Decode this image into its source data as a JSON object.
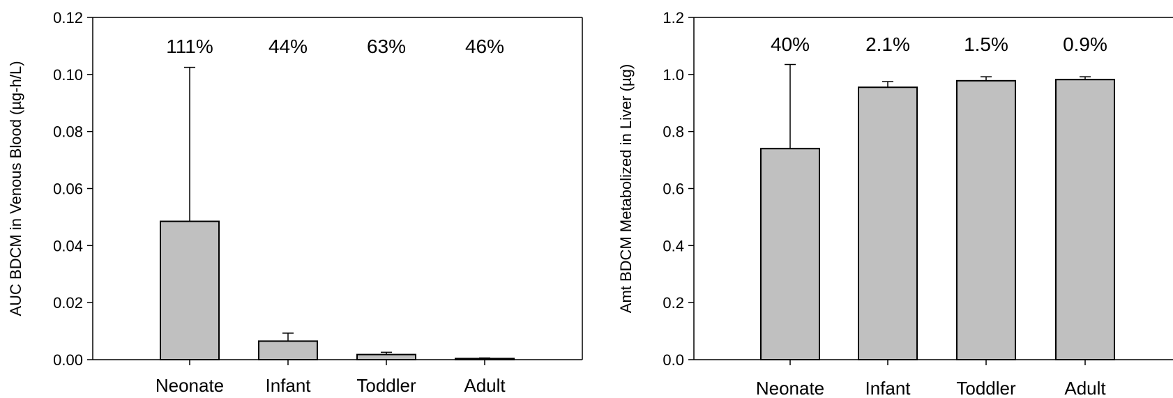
{
  "chart_data": [
    {
      "type": "bar",
      "categories": [
        "Neonate",
        "Infant",
        "Toddler",
        "Adult"
      ],
      "values": [
        0.0485,
        0.0065,
        0.0018,
        0.0004
      ],
      "error_plus": [
        0.054,
        0.0028,
        0.0008,
        0.0002
      ],
      "annotations": [
        "111%",
        "44%",
        "63%",
        "46%"
      ],
      "ylabel": "AUC BDCM in Venous Blood (µg-h/L)",
      "xlabel": "",
      "ylim": [
        0,
        0.12
      ],
      "yticks": [
        "0.00",
        "0.02",
        "0.04",
        "0.06",
        "0.08",
        "0.10",
        "0.12"
      ],
      "color": "#c0c0c0"
    },
    {
      "type": "bar",
      "categories": [
        "Neonate",
        "Infant",
        "Toddler",
        "Adult"
      ],
      "values": [
        0.74,
        0.955,
        0.978,
        0.982
      ],
      "error_plus": [
        0.295,
        0.02,
        0.014,
        0.01
      ],
      "annotations": [
        "40%",
        "2.1%",
        "1.5%",
        "0.9%"
      ],
      "ylabel": "Amt BDCM Metabolized in Liver (µg)",
      "xlabel": "",
      "ylim": [
        0,
        1.2
      ],
      "yticks": [
        "0.0",
        "0.2",
        "0.4",
        "0.6",
        "0.8",
        "1.0",
        "1.2"
      ],
      "color": "#c0c0c0"
    }
  ]
}
